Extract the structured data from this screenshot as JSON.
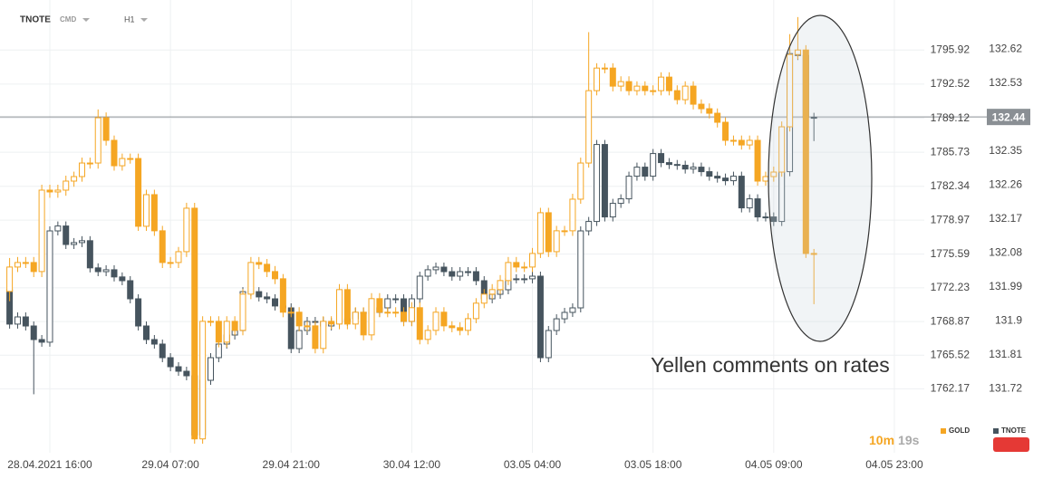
{
  "header": {
    "symbol": "TNOTE",
    "market": "CMD",
    "interval": "H1"
  },
  "annotation": "Yellen comments on rates",
  "timer": {
    "minutes": "10m",
    "seconds": "19s"
  },
  "chart_data": {
    "type": "candlestick",
    "grid": true,
    "legend": "bottom-right",
    "ylim": [
      1755.8,
      1800.9
    ],
    "yticks": [
      1795.92,
      1792.52,
      1789.12,
      1785.73,
      1782.34,
      1778.97,
      1775.59,
      1772.23,
      1768.87,
      1765.52,
      1762.17
    ],
    "y2lim": [
      131.55,
      132.75
    ],
    "y2ticks": [
      132.62,
      132.53,
      132.35,
      132.26,
      132.17,
      132.08,
      131.99,
      131.9,
      131.81,
      131.72
    ],
    "current_price": 132.44,
    "categories": [
      null,
      null,
      null,
      null,
      null,
      "28.04.2021 16:00",
      null,
      null,
      null,
      null,
      null,
      null,
      null,
      null,
      null,
      null,
      null,
      null,
      null,
      null,
      "29.04 07:00",
      null,
      null,
      null,
      null,
      null,
      null,
      null,
      null,
      null,
      null,
      null,
      null,
      null,
      null,
      "29.04 21:00",
      null,
      null,
      null,
      null,
      null,
      null,
      null,
      null,
      null,
      null,
      null,
      null,
      null,
      null,
      "30.04 12:00",
      null,
      null,
      null,
      null,
      null,
      null,
      null,
      null,
      null,
      null,
      null,
      null,
      null,
      null,
      "03.05 04:00",
      null,
      null,
      null,
      null,
      null,
      null,
      null,
      null,
      null,
      null,
      null,
      null,
      null,
      null,
      "03.05 18:00",
      null,
      null,
      null,
      null,
      null,
      null,
      null,
      null,
      null,
      null,
      null,
      null,
      null,
      null,
      "04.05 09:00",
      null,
      null,
      null,
      null,
      null,
      null,
      null,
      null,
      null,
      null,
      null,
      null,
      null,
      null,
      "04.05 23:00"
    ],
    "series": [
      {
        "name": "TNOTE",
        "color": "#46545e",
        "axis": "y2",
        "open": [
          131.982,
          131.891,
          131.91,
          131.886,
          131.85,
          131.843,
          132.138,
          132.151,
          132.102,
          132.107,
          132.112,
          132.04,
          132.03,
          132.035,
          132.016,
          132.006,
          131.958,
          131.886,
          131.85,
          131.838,
          131.802,
          131.778,
          131.766,
          131.754,
          131.597,
          131.742,
          131.802,
          131.838,
          131.862,
          131.874,
          131.977,
          131.977,
          131.963,
          131.958,
          131.939,
          131.934,
          131.826,
          131.874,
          131.898,
          131.898,
          131.886,
          131.895,
          131.898,
          131.905,
          131.922,
          131.922,
          131.922,
          131.934,
          131.958,
          131.958,
          131.898,
          131.958,
          132.018,
          132.035,
          132.042,
          132.03,
          132.018,
          132.03,
          132.03,
          132.006,
          131.958,
          131.97,
          131.982,
          132.011,
          132.011,
          132.011,
          132.018,
          131.802,
          131.874,
          131.905,
          131.922,
          131.934,
          132.138,
          132.163,
          132.367,
          132.175,
          132.211,
          132.223,
          132.283,
          132.307,
          132.283,
          132.343,
          132.319,
          132.314,
          132.312,
          132.302,
          132.307,
          132.295,
          132.283,
          132.278,
          132.271,
          132.283,
          132.199,
          132.223,
          132.175,
          132.175,
          132.163,
          132.295,
          132.608,
          132.603,
          132.439,
          null,
          null,
          null,
          null,
          null,
          null,
          null,
          null,
          null,
          null
        ],
        "high": [
          131.994,
          131.922,
          131.922,
          131.898,
          131.862,
          132.15,
          132.163,
          132.163,
          132.119,
          132.124,
          132.124,
          132.052,
          132.047,
          132.047,
          132.028,
          132.018,
          131.97,
          131.898,
          131.862,
          131.85,
          131.814,
          131.79,
          131.778,
          131.766,
          131.754,
          131.814,
          131.85,
          131.874,
          131.886,
          131.989,
          131.989,
          131.989,
          131.975,
          131.97,
          131.951,
          131.946,
          131.886,
          131.91,
          131.91,
          131.91,
          131.907,
          131.91,
          131.917,
          131.934,
          131.934,
          131.934,
          131.946,
          131.97,
          131.97,
          131.97,
          131.97,
          132.03,
          132.047,
          132.054,
          132.054,
          132.042,
          132.042,
          132.042,
          132.042,
          132.018,
          131.982,
          131.994,
          132.023,
          132.023,
          132.023,
          132.03,
          132.03,
          131.886,
          131.917,
          131.934,
          131.946,
          132.15,
          132.175,
          132.379,
          132.379,
          132.223,
          132.235,
          132.295,
          132.319,
          132.319,
          132.355,
          132.355,
          132.331,
          132.326,
          132.324,
          132.319,
          132.319,
          132.307,
          132.295,
          132.29,
          132.295,
          132.295,
          132.235,
          132.235,
          132.187,
          132.187,
          132.307,
          132.62,
          132.62,
          132.615,
          132.451,
          null,
          null,
          null,
          null,
          null,
          null,
          null,
          null,
          null,
          null
        ],
        "low": [
          131.879,
          131.879,
          131.874,
          131.705,
          131.831,
          131.831,
          132.126,
          132.09,
          132.09,
          132.095,
          132.028,
          132.018,
          132.018,
          132.004,
          131.994,
          131.946,
          131.874,
          131.838,
          131.826,
          131.79,
          131.766,
          131.754,
          131.742,
          131.585,
          131.585,
          131.73,
          131.79,
          131.826,
          131.85,
          131.862,
          131.965,
          131.951,
          131.946,
          131.927,
          131.922,
          131.814,
          131.814,
          131.862,
          131.886,
          131.874,
          131.874,
          131.883,
          131.886,
          131.893,
          131.91,
          131.91,
          131.91,
          131.922,
          131.946,
          131.886,
          131.886,
          131.946,
          132.006,
          132.023,
          132.018,
          132.006,
          132.006,
          132.018,
          131.994,
          131.946,
          131.946,
          131.958,
          131.97,
          131.999,
          131.999,
          131.999,
          131.79,
          131.79,
          131.862,
          131.893,
          131.91,
          131.922,
          132.126,
          132.151,
          132.163,
          132.163,
          132.199,
          132.211,
          132.271,
          132.271,
          132.271,
          132.307,
          132.302,
          132.3,
          132.29,
          132.29,
          132.283,
          132.271,
          132.266,
          132.259,
          132.259,
          132.187,
          132.187,
          132.163,
          132.163,
          132.151,
          132.151,
          132.283,
          132.591,
          132.427,
          132.376,
          null,
          null,
          null,
          null,
          null,
          null,
          null,
          null,
          null,
          null
        ],
        "close": [
          131.891,
          131.91,
          131.886,
          131.85,
          131.843,
          132.138,
          132.151,
          132.102,
          132.107,
          132.112,
          132.04,
          132.03,
          132.035,
          132.016,
          132.006,
          131.958,
          131.886,
          131.85,
          131.838,
          131.802,
          131.778,
          131.766,
          131.754,
          131.597,
          131.742,
          131.802,
          131.838,
          131.862,
          131.874,
          131.977,
          131.977,
          131.963,
          131.958,
          131.939,
          131.934,
          131.826,
          131.874,
          131.898,
          131.898,
          131.886,
          131.895,
          131.898,
          131.905,
          131.922,
          131.922,
          131.922,
          131.934,
          131.958,
          131.958,
          131.898,
          131.958,
          132.018,
          132.035,
          132.042,
          132.03,
          132.018,
          132.03,
          132.03,
          132.006,
          131.958,
          131.97,
          131.982,
          132.011,
          132.011,
          132.011,
          132.018,
          131.802,
          131.874,
          131.905,
          131.922,
          131.934,
          132.138,
          132.163,
          132.367,
          132.175,
          132.211,
          132.223,
          132.283,
          132.307,
          132.283,
          132.343,
          132.319,
          132.314,
          132.312,
          132.302,
          132.307,
          132.295,
          132.283,
          132.278,
          132.271,
          132.283,
          132.199,
          132.223,
          132.175,
          132.175,
          132.163,
          132.295,
          132.608,
          132.603,
          132.439,
          132.439,
          null,
          null,
          null,
          null,
          null,
          null,
          null,
          null,
          null,
          null
        ]
      },
      {
        "name": "GOLD",
        "color": "#f5a623",
        "axis": "y",
        "open": [
          1771.87,
          1774.3,
          1774.75,
          1774.75,
          1773.85,
          1781.96,
          1781.78,
          1781.96,
          1782.86,
          1783.31,
          1784.66,
          1784.66,
          1789.17,
          1786.92,
          1784.39,
          1785.11,
          1785.11,
          1778.36,
          1781.51,
          1777.91,
          1774.75,
          1774.75,
          1775.83,
          1780.16,
          1757.18,
          1768.89,
          1768.89,
          1766.82,
          1768.89,
          1767.99,
          1771.6,
          1774.75,
          1774.57,
          1773.85,
          1773.13,
          1769.8,
          1769.8,
          1768.44,
          1768.44,
          1766.19,
          1768.89,
          1768.62,
          1772.05,
          1768.62,
          1769.8,
          1767.54,
          1771.15,
          1769.8,
          1769.8,
          1769.8,
          1768.89,
          1770.25,
          1767.09,
          1767.99,
          1769.8,
          1768.44,
          1768.26,
          1767.99,
          1769.16,
          1770.7,
          1771.6,
          1772.05,
          1772.95,
          1774.75,
          1774.3,
          1774.3,
          1775.65,
          1779.71,
          1775.83,
          1777.91,
          1777.91,
          1781.06,
          1784.66,
          1791.87,
          1794.12,
          1794.12,
          1792.32,
          1792.77,
          1791.87,
          1792.32,
          1791.87,
          1791.87,
          1793.22,
          1791.87,
          1790.97,
          1792.32,
          1790.52,
          1790.07,
          1789.62,
          1788.72,
          1786.92,
          1786.92,
          1786.46,
          1786.92,
          1782.86,
          1783.31,
          1783.76,
          1788.27,
          1795.47,
          1795.92,
          1775.65,
          null,
          null,
          null,
          null,
          null,
          null,
          null,
          null,
          null,
          null
        ],
        "high": [
          1775.2,
          1775.3,
          1775.3,
          1775.3,
          1782.5,
          1782.5,
          1782.5,
          1783.4,
          1783.8,
          1785.2,
          1785.2,
          1790.0,
          1789.7,
          1787.4,
          1785.6,
          1785.6,
          1785.6,
          1782.0,
          1782.0,
          1778.4,
          1775.3,
          1776.3,
          1780.7,
          1780.7,
          1769.4,
          1769.4,
          1769.4,
          1769.4,
          1769.4,
          1772.1,
          1775.3,
          1775.3,
          1775.1,
          1774.4,
          1773.6,
          1770.3,
          1770.3,
          1768.9,
          1768.9,
          1769.4,
          1769.4,
          1772.6,
          1772.6,
          1770.3,
          1770.3,
          1771.7,
          1771.7,
          1770.3,
          1770.3,
          1770.3,
          1770.8,
          1770.8,
          1768.5,
          1770.3,
          1770.3,
          1768.9,
          1768.8,
          1769.7,
          1771.2,
          1772.1,
          1772.6,
          1773.5,
          1775.3,
          1775.3,
          1774.8,
          1776.2,
          1780.2,
          1780.2,
          1778.4,
          1778.4,
          1781.6,
          1785.2,
          1797.7,
          1794.6,
          1794.6,
          1794.6,
          1793.3,
          1793.3,
          1792.8,
          1792.8,
          1792.4,
          1793.7,
          1793.7,
          1792.4,
          1792.8,
          1792.8,
          1791.0,
          1790.6,
          1790.1,
          1789.2,
          1787.4,
          1787.4,
          1787.4,
          1787.4,
          1783.8,
          1784.3,
          1788.8,
          1797.5,
          1799.2,
          1796.4,
          1776.1,
          null,
          null,
          null,
          null,
          null,
          null,
          null,
          null,
          null,
          null
        ],
        "low": [
          1770.9,
          1773.8,
          1774.2,
          1773.3,
          1773.3,
          1781.2,
          1781.2,
          1781.4,
          1782.3,
          1782.8,
          1784.1,
          1784.1,
          1786.4,
          1783.9,
          1783.9,
          1784.6,
          1777.9,
          1777.9,
          1777.4,
          1774.2,
          1774.2,
          1774.2,
          1775.3,
          1756.7,
          1756.7,
          1768.4,
          1766.3,
          1766.3,
          1767.5,
          1767.5,
          1771.1,
          1774.1,
          1773.3,
          1772.6,
          1769.3,
          1769.3,
          1767.9,
          1767.9,
          1765.7,
          1765.7,
          1768.1,
          1768.1,
          1768.1,
          1768.1,
          1767.0,
          1767.0,
          1769.3,
          1769.3,
          1769.3,
          1768.4,
          1768.4,
          1766.6,
          1766.6,
          1767.5,
          1767.9,
          1767.8,
          1767.5,
          1767.5,
          1768.7,
          1770.2,
          1771.1,
          1771.6,
          1772.5,
          1773.8,
          1773.8,
          1773.8,
          1775.2,
          1775.3,
          1775.3,
          1777.4,
          1777.4,
          1780.6,
          1784.2,
          1791.4,
          1793.6,
          1791.8,
          1791.8,
          1791.4,
          1791.4,
          1791.4,
          1791.4,
          1791.4,
          1791.4,
          1790.5,
          1790.5,
          1790.0,
          1789.6,
          1789.1,
          1788.2,
          1786.4,
          1786.4,
          1786.0,
          1786.0,
          1782.4,
          1782.4,
          1782.8,
          1783.3,
          1787.8,
          1795.0,
          1775.2,
          1770.6,
          null,
          null,
          null,
          null,
          null,
          null,
          null,
          null,
          null,
          null
        ],
        "close": [
          1774.3,
          1774.75,
          1774.75,
          1773.85,
          1781.96,
          1781.78,
          1781.96,
          1782.86,
          1783.31,
          1784.66,
          1784.66,
          1789.17,
          1786.92,
          1784.39,
          1785.11,
          1785.11,
          1778.36,
          1781.51,
          1777.91,
          1774.75,
          1774.75,
          1775.83,
          1780.16,
          1757.18,
          1768.89,
          1768.89,
          1766.82,
          1768.89,
          1767.99,
          1771.6,
          1774.75,
          1774.57,
          1773.85,
          1773.13,
          1769.8,
          1769.8,
          1768.44,
          1768.44,
          1766.19,
          1768.89,
          1768.62,
          1772.05,
          1768.62,
          1769.8,
          1767.54,
          1771.15,
          1769.8,
          1769.8,
          1769.8,
          1768.89,
          1770.25,
          1767.09,
          1767.99,
          1769.8,
          1768.44,
          1768.26,
          1767.99,
          1769.16,
          1770.7,
          1771.6,
          1772.05,
          1772.95,
          1774.75,
          1774.3,
          1774.3,
          1775.65,
          1779.71,
          1775.83,
          1777.91,
          1777.91,
          1781.06,
          1784.66,
          1791.87,
          1794.12,
          1794.12,
          1792.32,
          1792.77,
          1791.87,
          1792.32,
          1791.87,
          1791.87,
          1793.22,
          1791.87,
          1790.97,
          1792.32,
          1790.52,
          1790.07,
          1789.62,
          1788.72,
          1786.92,
          1786.92,
          1786.46,
          1786.92,
          1782.86,
          1783.31,
          1783.76,
          1788.27,
          1795.47,
          1795.92,
          1775.65,
          1775.65,
          null,
          null,
          null,
          null,
          null,
          null,
          null,
          null,
          null,
          null
        ]
      }
    ]
  }
}
